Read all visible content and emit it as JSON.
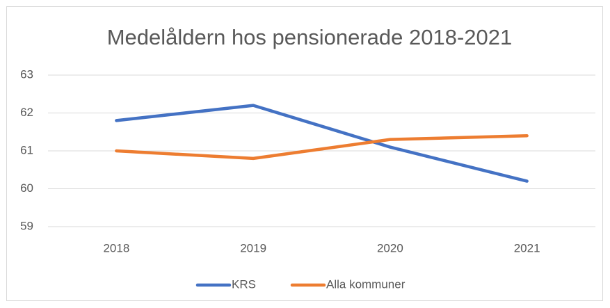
{
  "chart_data": {
    "type": "line",
    "title": "Medelåldern hos pensionerade 2018-2021",
    "categories": [
      "2018",
      "2019",
      "2020",
      "2021"
    ],
    "series": [
      {
        "name": "KRS",
        "color": "#4472c4",
        "values": [
          61.8,
          62.2,
          61.1,
          60.2
        ]
      },
      {
        "name": "Alla kommuner",
        "color": "#ed7d31",
        "values": [
          61.0,
          60.8,
          61.3,
          61.4
        ]
      }
    ],
    "ylim": [
      59,
      63
    ],
    "yticks": [
      59,
      60,
      61,
      62,
      63
    ],
    "grid": true,
    "legend": "bottom"
  }
}
